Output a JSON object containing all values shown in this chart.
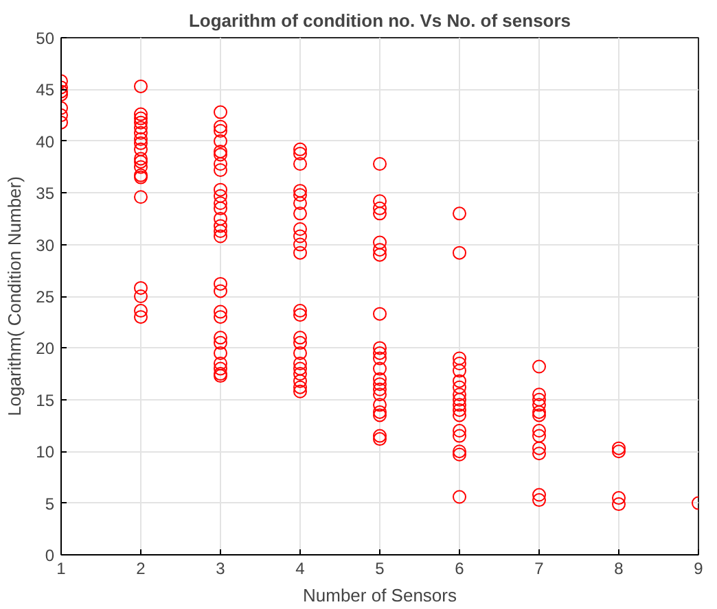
{
  "chart_data": {
    "type": "scatter",
    "title": "Logarithm of condition no. Vs No. of sensors",
    "xlabel": "Number of Sensors",
    "ylabel": "Logarithm( Condition Number)",
    "xlim": [
      1,
      9
    ],
    "ylim": [
      0,
      50
    ],
    "xticks": [
      1,
      2,
      3,
      4,
      5,
      6,
      7,
      8,
      9
    ],
    "yticks": [
      0,
      5,
      10,
      15,
      20,
      25,
      30,
      35,
      40,
      45,
      50
    ],
    "grid": true,
    "marker": "circle",
    "series": [
      {
        "color": "#ff0000",
        "x": [
          1,
          1,
          1,
          1,
          1,
          1,
          1,
          2,
          2,
          2,
          2,
          2,
          2,
          2,
          2,
          2,
          2,
          2,
          2,
          2,
          2,
          2,
          2,
          2,
          2,
          2,
          3,
          3,
          3,
          3,
          3,
          3,
          3,
          3,
          3,
          3,
          3,
          3,
          3,
          3,
          3,
          3,
          3,
          3,
          3,
          3,
          3,
          3,
          3,
          3,
          3,
          3,
          3,
          4,
          4,
          4,
          4,
          4,
          4,
          4,
          4,
          4,
          4,
          4,
          4,
          4,
          4,
          4,
          4,
          4,
          4,
          4,
          4,
          4,
          4,
          5,
          5,
          5,
          5,
          5,
          5,
          5,
          5,
          5,
          5,
          5,
          5,
          5,
          5,
          5,
          5,
          5,
          5,
          5,
          5,
          5,
          6,
          6,
          6,
          6,
          6,
          6,
          6,
          6,
          6,
          6,
          6,
          6,
          6,
          6,
          6,
          6,
          6,
          7,
          7,
          7,
          7,
          7,
          7,
          7,
          7,
          7,
          7,
          7,
          7,
          8,
          8,
          8,
          8,
          9
        ],
        "values": [
          45.8,
          45.2,
          44.8,
          44.5,
          43.2,
          42.5,
          41.8,
          45.3,
          42.6,
          42.2,
          41.8,
          41.3,
          40.8,
          40.2,
          39.8,
          39.2,
          38.3,
          38.0,
          37.5,
          36.7,
          36.5,
          34.6,
          25.8,
          25.0,
          23.6,
          23.0,
          42.8,
          41.4,
          41.0,
          40.0,
          39.0,
          38.7,
          37.8,
          37.2,
          35.3,
          34.7,
          34.0,
          33.5,
          32.5,
          31.8,
          31.3,
          30.8,
          26.2,
          25.5,
          23.5,
          23.0,
          21.0,
          20.5,
          19.5,
          18.5,
          18.0,
          17.5,
          17.3,
          39.2,
          38.8,
          37.8,
          35.2,
          34.8,
          34.0,
          33.0,
          31.5,
          30.8,
          30.0,
          29.2,
          23.6,
          23.2,
          21.0,
          20.5,
          19.5,
          18.5,
          18.0,
          17.5,
          16.8,
          16.2,
          15.8,
          37.8,
          34.2,
          33.5,
          33.0,
          30.2,
          29.5,
          29.0,
          23.3,
          20.0,
          19.5,
          19.0,
          18.0,
          17.0,
          16.5,
          16.0,
          15.5,
          14.5,
          13.8,
          13.5,
          11.5,
          11.2,
          33.0,
          29.2,
          19.0,
          18.5,
          17.8,
          16.8,
          16.2,
          15.5,
          15.0,
          14.5,
          14.0,
          13.5,
          12.0,
          11.5,
          10.0,
          9.7,
          5.6,
          18.2,
          15.5,
          15.0,
          14.5,
          13.8,
          13.5,
          12.0,
          11.5,
          10.3,
          9.8,
          5.8,
          5.3,
          10.3,
          10.0,
          5.5,
          4.9,
          5.0
        ]
      }
    ]
  }
}
